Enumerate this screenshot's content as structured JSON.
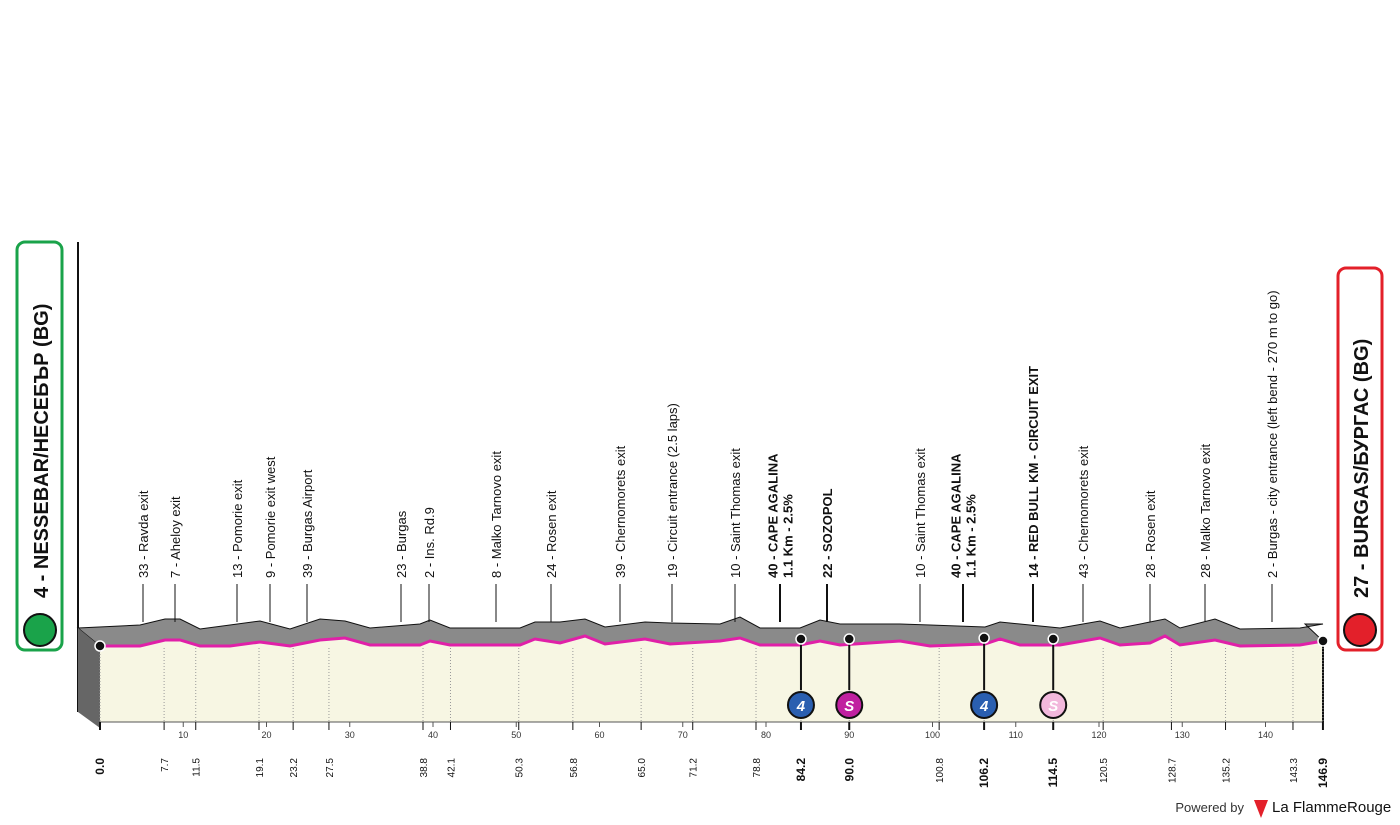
{
  "start": {
    "label": "4 - NESSEBAR/НЕСЕБЪР (BG)"
  },
  "finish": {
    "label": "27 - BURGAS/БУРГАС (BG)"
  },
  "waypoints": [
    {
      "lines": [
        "33 - Ravda exit"
      ]
    },
    {
      "lines": [
        "7 - Aheloy exit"
      ]
    },
    {
      "lines": [
        "13 - Pomorie exit"
      ]
    },
    {
      "lines": [
        "9 - Pomorie exit west"
      ]
    },
    {
      "lines": [
        "39 - Burgas Airport"
      ]
    },
    {
      "lines": [
        "23 - Burgas"
      ]
    },
    {
      "lines": [
        "2 - Ins. Rd.9"
      ]
    },
    {
      "lines": [
        "8 - Malko Tarnovo exit"
      ]
    },
    {
      "lines": [
        "24 - Rosen exit"
      ]
    },
    {
      "lines": [
        "39 - Chernomorets exit"
      ]
    },
    {
      "lines": [
        "19 - Circuit entrance (2.5 laps)"
      ]
    },
    {
      "lines": [
        "10 - Saint Thomas exit"
      ]
    },
    {
      "lines": [
        "40 - CAPE AGALINA",
        "1.1 Km - 2.5%"
      ]
    },
    {
      "lines": [
        "22 - SOZOPOL"
      ]
    },
    {
      "lines": [
        "10 - Saint Thomas exit"
      ]
    },
    {
      "lines": [
        "40 - CAPE AGALINA",
        "1.1 Km - 2.5%"
      ]
    },
    {
      "lines": [
        "14 - RED BULL KM - CIRCUIT EXIT"
      ]
    },
    {
      "lines": [
        "43 - Chernomorets exit"
      ]
    },
    {
      "lines": [
        "28 - Rosen exit"
      ]
    },
    {
      "lines": [
        "28 - Malko Tarnovo exit"
      ]
    },
    {
      "lines": [
        "2 - Burgas - city entrance (left bend - 270 m to go)"
      ]
    }
  ],
  "km_labels": [
    "0.0",
    "7.7",
    "11.5",
    "19.1",
    "23.2",
    "27.5",
    "38.8",
    "42.1",
    "50.3",
    "56.8",
    "65.0",
    "71.2",
    "78.8",
    "84.2",
    "90.0",
    "100.8",
    "106.2",
    "114.5",
    "120.5",
    "128.7",
    "135.2",
    "143.3",
    "146.9"
  ],
  "axis_ticks": [
    "0",
    "10",
    "20",
    "30",
    "40",
    "50",
    "60",
    "70",
    "80",
    "90",
    "100",
    "110",
    "120",
    "130",
    "140"
  ],
  "badges": [
    {
      "km": "84.2",
      "text": "4"
    },
    {
      "km": "90.0",
      "text": "S"
    },
    {
      "km": "106.2",
      "text": "4"
    },
    {
      "km": "114.5",
      "text": "S"
    }
  ],
  "footer": {
    "powered": "Powered by",
    "brand": "La FlammeRouge"
  }
}
